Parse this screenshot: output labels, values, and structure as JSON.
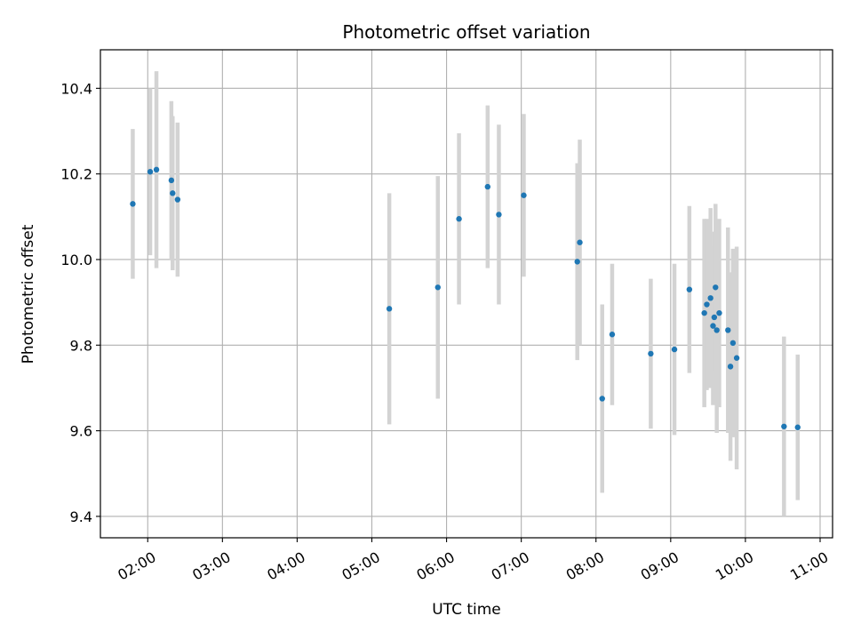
{
  "chart_data": {
    "type": "scatter",
    "title": "Photometric offset variation",
    "xlabel": "UTC time",
    "ylabel": "Photometric offset",
    "x_unit": "UTC time of day",
    "xlim": [
      "01:22",
      "11:10"
    ],
    "ylim": [
      9.35,
      10.49
    ],
    "x_ticks": [
      "02:00",
      "03:00",
      "04:00",
      "05:00",
      "06:00",
      "07:00",
      "08:00",
      "09:00",
      "10:00",
      "11:00"
    ],
    "y_ticks": [
      9.4,
      9.6,
      9.8,
      10.0,
      10.2,
      10.4
    ],
    "y_tick_labels": [
      "9.4",
      "9.6",
      "9.8",
      "10.0",
      "10.2",
      "10.4"
    ],
    "grid": true,
    "colors": {
      "points": "#1f77b4",
      "error_bars": "#d3d3d3",
      "grid": "#b0b0b0"
    },
    "series": [
      {
        "points": [
          {
            "x": "01:48",
            "y": 10.13,
            "err": 0.175
          },
          {
            "x": "02:02",
            "y": 10.205,
            "err": 0.195
          },
          {
            "x": "02:07",
            "y": 10.21,
            "err": 0.23
          },
          {
            "x": "02:19",
            "y": 10.185,
            "err": 0.185
          },
          {
            "x": "02:20",
            "y": 10.155,
            "err": 0.18
          },
          {
            "x": "02:24",
            "y": 10.14,
            "err": 0.18
          },
          {
            "x": "05:14",
            "y": 9.885,
            "err": 0.27
          },
          {
            "x": "05:53",
            "y": 9.935,
            "err": 0.26
          },
          {
            "x": "06:10",
            "y": 10.095,
            "err": 0.2
          },
          {
            "x": "06:33",
            "y": 10.17,
            "err": 0.19
          },
          {
            "x": "06:42",
            "y": 10.105,
            "err": 0.21
          },
          {
            "x": "07:02",
            "y": 10.15,
            "err": 0.19
          },
          {
            "x": "07:45",
            "y": 9.995,
            "err": 0.23
          },
          {
            "x": "07:47",
            "y": 10.04,
            "err": 0.24
          },
          {
            "x": "08:05",
            "y": 9.675,
            "err": 0.22
          },
          {
            "x": "08:13",
            "y": 9.825,
            "err": 0.165
          },
          {
            "x": "08:44",
            "y": 9.78,
            "err": 0.175
          },
          {
            "x": "09:03",
            "y": 9.79,
            "err": 0.2
          },
          {
            "x": "09:15",
            "y": 9.93,
            "err": 0.195
          },
          {
            "x": "09:27",
            "y": 9.875,
            "err": 0.22
          },
          {
            "x": "09:29",
            "y": 9.895,
            "err": 0.2
          },
          {
            "x": "09:32",
            "y": 9.91,
            "err": 0.21
          },
          {
            "x": "09:34",
            "y": 9.845,
            "err": 0.185
          },
          {
            "x": "09:35",
            "y": 9.865,
            "err": 0.2
          },
          {
            "x": "09:36",
            "y": 9.935,
            "err": 0.195
          },
          {
            "x": "09:37",
            "y": 9.835,
            "err": 0.24
          },
          {
            "x": "09:39",
            "y": 9.875,
            "err": 0.22
          },
          {
            "x": "09:46",
            "y": 9.835,
            "err": 0.24
          },
          {
            "x": "09:48",
            "y": 9.75,
            "err": 0.22
          },
          {
            "x": "09:50",
            "y": 9.805,
            "err": 0.22
          },
          {
            "x": "09:53",
            "y": 9.77,
            "err": 0.26
          },
          {
            "x": "10:31",
            "y": 9.61,
            "err": 0.21
          },
          {
            "x": "10:42",
            "y": 9.608,
            "err": 0.17
          }
        ]
      }
    ]
  }
}
